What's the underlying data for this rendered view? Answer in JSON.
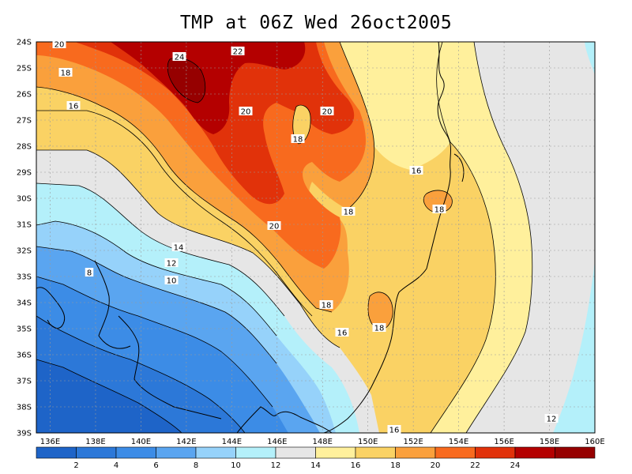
{
  "title": "TMP at 06Z Wed 26oct2005",
  "map": {
    "lat_labels": [
      "24S",
      "25S",
      "26S",
      "27S",
      "28S",
      "29S",
      "30S",
      "31S",
      "32S",
      "33S",
      "34S",
      "35S",
      "36S",
      "37S",
      "38S",
      "39S"
    ],
    "lon_labels": [
      "136E",
      "138E",
      "140E",
      "142E",
      "144E",
      "146E",
      "148E",
      "150E",
      "152E",
      "154E",
      "156E",
      "158E",
      "160E"
    ],
    "contour_labels": [
      {
        "text": "20",
        "pos": "top-left"
      },
      {
        "text": "18",
        "pos": "left-25S"
      },
      {
        "text": "16",
        "pos": "left-26.5S"
      },
      {
        "text": "24",
        "pos": "max-center"
      },
      {
        "text": "22",
        "pos": "top-center"
      },
      {
        "text": "20",
        "pos": "center-north"
      },
      {
        "text": "20",
        "pos": "center-northeast"
      },
      {
        "text": "18",
        "pos": "center-north-tongue"
      },
      {
        "text": "16",
        "pos": "east-29S"
      },
      {
        "text": "18",
        "pos": "east-30S"
      },
      {
        "text": "18",
        "pos": "center-30.5S"
      },
      {
        "text": "20",
        "pos": "center-31S"
      },
      {
        "text": "14",
        "pos": "west-32S"
      },
      {
        "text": "12",
        "pos": "west-32.5S"
      },
      {
        "text": "10",
        "pos": "west-33S"
      },
      {
        "text": "8",
        "pos": "west-33S-b"
      },
      {
        "text": "18",
        "pos": "center-34S"
      },
      {
        "text": "18",
        "pos": "center-35S"
      },
      {
        "text": "16",
        "pos": "center-35S-b"
      },
      {
        "text": "16",
        "pos": "bottom"
      },
      {
        "text": "12",
        "pos": "east-38S"
      }
    ]
  },
  "colorbar": {
    "labels": [
      "2",
      "4",
      "6",
      "8",
      "10",
      "12",
      "14",
      "16",
      "18",
      "20",
      "22",
      "24"
    ],
    "colors": [
      "#1e64c8",
      "#2c78d8",
      "#3c8ce6",
      "#5aa5f0",
      "#96d2fa",
      "#b4f0fa",
      "#e6e6e6",
      "#fff09c",
      "#fad264",
      "#faa03c",
      "#f86a1e",
      "#e1320a",
      "#b40000",
      "#960000"
    ]
  },
  "colors": {
    "c2": "#1e64c8",
    "c4": "#2c78d8",
    "c6": "#3c8ce6",
    "c8": "#5aa5f0",
    "c10": "#96d2fa",
    "c12": "#b4f0fa",
    "c14": "#e6e6e6",
    "c16": "#fff09c",
    "c18": "#fad264",
    "c20": "#faa03c",
    "c22": "#f86a1e",
    "c24": "#e1320a",
    "c26": "#b40000"
  }
}
